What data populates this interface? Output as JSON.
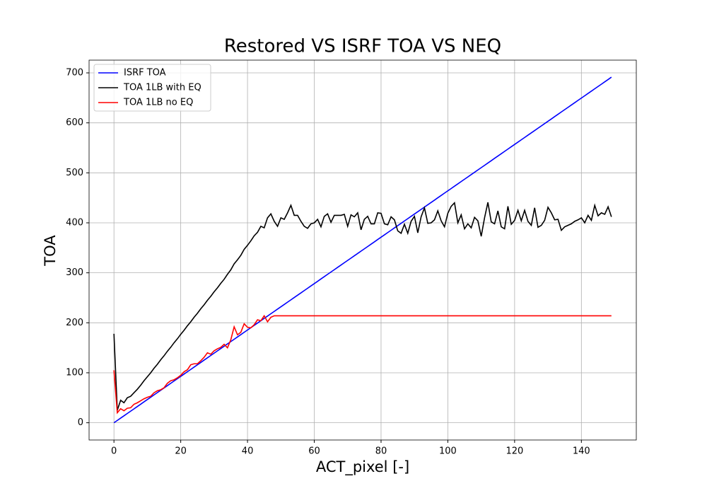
{
  "chart_data": {
    "type": "line",
    "title": "Restored VS ISRF TOA VS NEQ",
    "x_label": "ACT_pixel [-]",
    "y_label": "TOA",
    "x": [
      0,
      1,
      2,
      3,
      4,
      5,
      6,
      7,
      8,
      9,
      10,
      11,
      12,
      13,
      14,
      15,
      16,
      17,
      18,
      19,
      20,
      21,
      22,
      23,
      24,
      25,
      26,
      27,
      28,
      29,
      30,
      31,
      32,
      33,
      34,
      35,
      36,
      37,
      38,
      39,
      40,
      41,
      42,
      43,
      44,
      45,
      46,
      47,
      48,
      49,
      50,
      51,
      52,
      53,
      54,
      55,
      56,
      57,
      58,
      59,
      60,
      61,
      62,
      63,
      64,
      65,
      66,
      67,
      68,
      69,
      70,
      71,
      72,
      73,
      74,
      75,
      76,
      77,
      78,
      79,
      80,
      81,
      82,
      83,
      84,
      85,
      86,
      87,
      88,
      89,
      90,
      91,
      92,
      93,
      94,
      95,
      96,
      97,
      98,
      99,
      100,
      101,
      102,
      103,
      104,
      105,
      106,
      107,
      108,
      109,
      110,
      111,
      112,
      113,
      114,
      115,
      116,
      117,
      118,
      119,
      120,
      121,
      122,
      123,
      124,
      125,
      126,
      127,
      128,
      129,
      130,
      131,
      132,
      133,
      134,
      135,
      136,
      137,
      138,
      139,
      140,
      141,
      142,
      143,
      144,
      145,
      146,
      147,
      148,
      149
    ],
    "series": [
      {
        "name": "ISRF TOA",
        "color": "#0000ff",
        "values": [
          0,
          4.6,
          9.3,
          13.9,
          18.6,
          23.2,
          27.8,
          32.5,
          37.1,
          41.8,
          46.4,
          51,
          55.7,
          60.3,
          65,
          69.6,
          74.2,
          78.9,
          83.5,
          88.2,
          92.8,
          97.4,
          102.1,
          106.7,
          111.4,
          116,
          120.6,
          125.3,
          129.9,
          134.6,
          139.2,
          143.8,
          148.5,
          153.1,
          157.8,
          162.4,
          167,
          171.7,
          176.3,
          181,
          185.6,
          190.2,
          194.9,
          199.5,
          204.2,
          208.8,
          213.4,
          218.1,
          222.7,
          227.4,
          232,
          236.6,
          241.3,
          245.9,
          250.6,
          255.2,
          259.8,
          264.5,
          269.1,
          273.8,
          278.4,
          283,
          287.7,
          292.3,
          297,
          301.6,
          306.2,
          310.9,
          315.5,
          320.2,
          324.8,
          329.4,
          334.1,
          338.7,
          343.4,
          348,
          352.6,
          357.3,
          361.9,
          366.6,
          371.2,
          375.8,
          380.5,
          385.1,
          389.8,
          394.4,
          399,
          403.7,
          408.3,
          413,
          417.6,
          422.2,
          426.9,
          431.5,
          436.2,
          440.8,
          445.4,
          450.1,
          454.7,
          459.4,
          464,
          468.6,
          473.3,
          477.9,
          482.6,
          487.2,
          491.8,
          496.5,
          501.1,
          505.8,
          510.4,
          515,
          519.7,
          524.3,
          529,
          533.6,
          538.2,
          542.9,
          547.5,
          552.2,
          556.8,
          561.4,
          566.1,
          570.7,
          575.4,
          580,
          584.6,
          589.3,
          593.9,
          598.6,
          603.2,
          607.8,
          612.5,
          617.1,
          621.8,
          626.4,
          631,
          635.7,
          640.3,
          645,
          649.6,
          654.2,
          658.9,
          663.5,
          668.2,
          672.8,
          677.4,
          682.1,
          686.7,
          691.4
        ]
      },
      {
        "name": "TOA 1LB with EQ",
        "color": "#000000",
        "values": [
          178,
          25,
          45,
          40,
          50,
          53,
          60,
          67,
          75,
          84,
          92,
          100,
          109,
          117,
          126,
          134,
          143,
          151,
          160,
          168,
          177,
          185,
          194,
          202,
          211,
          219,
          228,
          236,
          245,
          253,
          262,
          270,
          279,
          287,
          297,
          306,
          318,
          326,
          335,
          347,
          355,
          364,
          374,
          381,
          393,
          390,
          410,
          418,
          403,
          393,
          410,
          407,
          420,
          435,
          415,
          415,
          403,
          393,
          389,
          398,
          400,
          407,
          392,
          413,
          418,
          401,
          415,
          415,
          415,
          417,
          393,
          416,
          412,
          420,
          386,
          407,
          413,
          398,
          398,
          420,
          419,
          398,
          396,
          412,
          406,
          384,
          379,
          397,
          379,
          403,
          413,
          380,
          412,
          430,
          399,
          400,
          406,
          424,
          404,
          392,
          419,
          433,
          440,
          400,
          416,
          388,
          398,
          390,
          411,
          404,
          373,
          410,
          441,
          402,
          398,
          424,
          392,
          388,
          433,
          397,
          405,
          425,
          404,
          425,
          403,
          395,
          430,
          391,
          395,
          405,
          431,
          420,
          406,
          407,
          385,
          392,
          395,
          398,
          403,
          406,
          410,
          400,
          415,
          405,
          435,
          414,
          420,
          417,
          432,
          412
        ]
      },
      {
        "name": "TOA 1LB no EQ",
        "color": "#ff0000",
        "values": [
          105,
          20,
          28,
          24,
          29,
          30,
          37,
          40,
          44,
          48,
          51,
          53,
          60,
          64,
          66,
          70,
          79,
          84,
          86,
          90,
          95,
          102,
          106,
          116,
          118,
          118,
          124,
          131,
          140,
          137,
          144,
          148,
          151,
          157,
          150,
          166,
          192,
          176,
          181,
          198,
          191,
          190,
          196,
          206,
          204,
          214,
          202,
          211,
          214,
          214,
          214,
          214,
          214,
          214,
          214,
          214,
          214,
          214,
          214,
          214,
          214,
          214,
          214,
          214,
          214,
          214,
          214,
          214,
          214,
          214,
          214,
          214,
          214,
          214,
          214,
          214,
          214,
          214,
          214,
          214,
          214,
          214,
          214,
          214,
          214,
          214,
          214,
          214,
          214,
          214,
          214,
          214,
          214,
          214,
          214,
          214,
          214,
          214,
          214,
          214,
          214,
          214,
          214,
          214,
          214,
          214,
          214,
          214,
          214,
          214,
          214,
          214,
          214,
          214,
          214,
          214,
          214,
          214,
          214,
          214,
          214,
          214,
          214,
          214,
          214,
          214,
          214,
          214,
          214,
          214,
          214,
          214,
          214,
          214,
          214,
          214,
          214,
          214,
          214,
          214,
          214,
          214,
          214,
          214,
          214,
          214,
          214,
          214,
          214,
          214
        ]
      }
    ],
    "xlim": [
      -7.45,
      156.45
    ],
    "ylim": [
      -34.5,
      725.5
    ],
    "xticks": [
      0,
      20,
      40,
      60,
      80,
      100,
      120,
      140
    ],
    "yticks": [
      0,
      100,
      200,
      300,
      400,
      500,
      600,
      700
    ],
    "grid": true,
    "legend": "upper-left"
  }
}
